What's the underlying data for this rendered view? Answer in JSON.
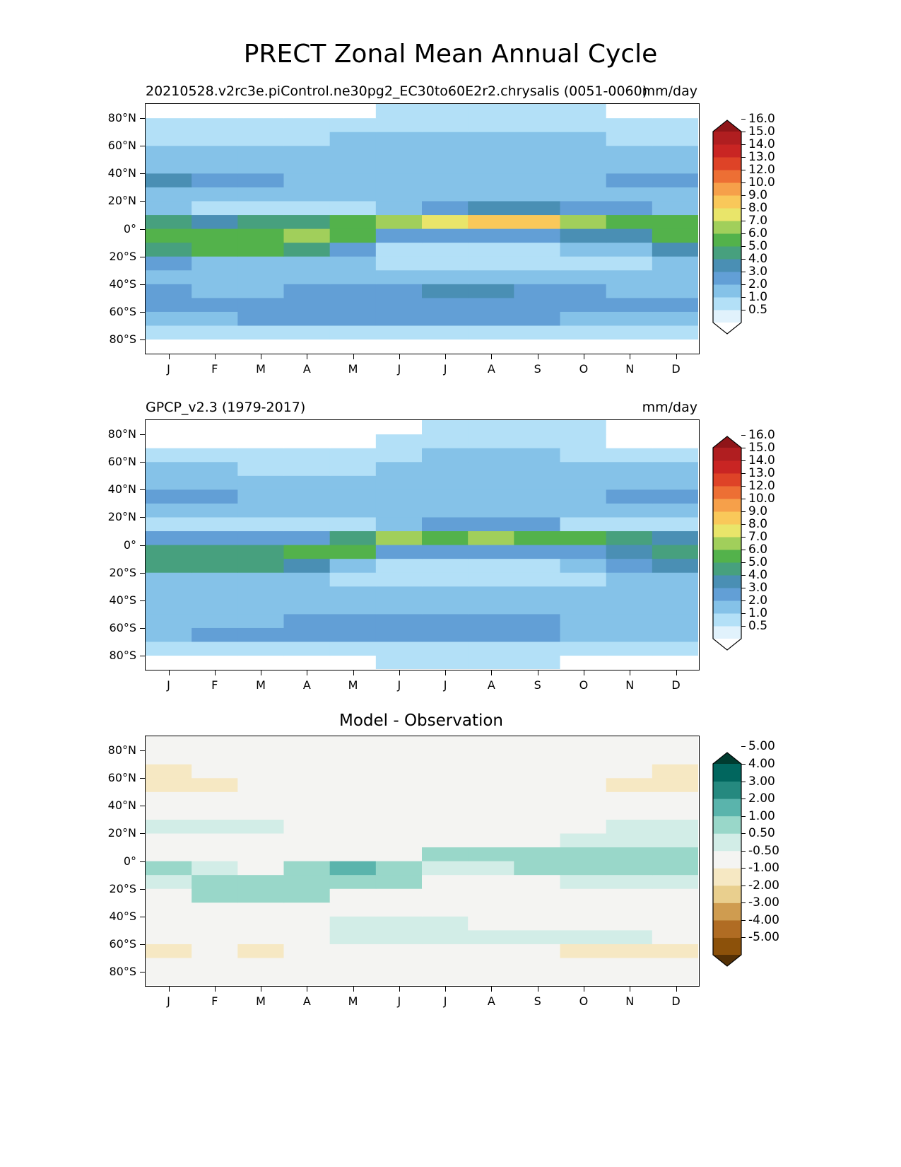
{
  "title": "PRECT Zonal Mean Annual Cycle",
  "chart_data": [
    {
      "type": "heatmap",
      "subtitle_left": "20210528.v2rc3e.piControl.ne30pg2_EC30to60E2r2.chrysalis (0051-0060)",
      "subtitle_right": "mm/day",
      "x_tick_labels": [
        "J",
        "F",
        "M",
        "A",
        "M",
        "J",
        "J",
        "A",
        "S",
        "O",
        "N",
        "D"
      ],
      "y_tick_labels": [
        "80°N",
        "60°N",
        "40°N",
        "20°N",
        "0°",
        "20°S",
        "40°S",
        "60°S",
        "80°S"
      ],
      "y_tick_values": [
        80,
        60,
        40,
        20,
        0,
        -20,
        -40,
        -60,
        -80
      ],
      "ylim": [
        -90,
        90
      ],
      "colorbar": {
        "extend": "both",
        "levels": [
          0.5,
          1.0,
          2.0,
          3.0,
          4.0,
          5.0,
          6.0,
          7.0,
          8.0,
          9.0,
          10.0,
          12.0,
          13.0,
          14.0,
          15.0,
          16.0
        ],
        "labels": [
          "0.5",
          "1.0",
          "2.0",
          "3.0",
          "4.0",
          "5.0",
          "6.0",
          "7.0",
          "8.0",
          "9.0",
          "10.0",
          "12.0",
          "13.0",
          "14.0",
          "15.0",
          "16.0"
        ],
        "colors": [
          "#ffffff",
          "#e1f2fc",
          "#b3e0f7",
          "#85c2e8",
          "#629fd6",
          "#4a8fb4",
          "#47a07e",
          "#53b24b",
          "#a1cf5b",
          "#e9e56a",
          "#f9c85a",
          "#f6a04a",
          "#ed6f34",
          "#de4327",
          "#c92523",
          "#b01e20",
          "#8f1518"
        ]
      },
      "lat_bins": [
        -90,
        -80,
        -70,
        -60,
        -50,
        -40,
        -30,
        -20,
        -10,
        0,
        10,
        20,
        30,
        40,
        50,
        60,
        70,
        80,
        90
      ],
      "values": [
        [
          0.3,
          0.3,
          0.3,
          0.3,
          0.3,
          0.3,
          0.3,
          0.3,
          0.3,
          0.3,
          0.3,
          0.3
        ],
        [
          1.5,
          1.5,
          1.5,
          1.5,
          1.5,
          1.5,
          1.5,
          1.5,
          1.5,
          1.5,
          1.5,
          1.5
        ],
        [
          2.5,
          2.5,
          3.5,
          3.5,
          3.5,
          3.5,
          3.5,
          3.5,
          3.5,
          2.5,
          2.5,
          2.5
        ],
        [
          3.5,
          3.5,
          3.5,
          3.5,
          3.5,
          3.5,
          3.5,
          3.5,
          3.5,
          3.5,
          3.5,
          3.5
        ],
        [
          3.5,
          2.5,
          2.5,
          3.5,
          3.5,
          3.5,
          4.5,
          4.5,
          3.5,
          3.5,
          2.5,
          2.5
        ],
        [
          2.5,
          2.5,
          2.5,
          2.5,
          2.5,
          2.5,
          2.5,
          2.5,
          2.5,
          2.5,
          2.5,
          2.5
        ],
        [
          3.5,
          2.5,
          2.5,
          2.5,
          2.5,
          1.5,
          1.5,
          1.5,
          1.5,
          1.5,
          1.5,
          2.5
        ],
        [
          5.5,
          6.5,
          6.5,
          5.5,
          3.5,
          1.5,
          1.5,
          1.0,
          1.5,
          2.5,
          2.5,
          4.5
        ],
        [
          6.5,
          6.5,
          6.5,
          7.5,
          6.5,
          3.5,
          3.5,
          3.5,
          3.5,
          4.5,
          4.5,
          6.5
        ],
        [
          5.5,
          4.5,
          5.5,
          5.5,
          6.5,
          7.5,
          8.5,
          9.5,
          9.5,
          7.5,
          6.5,
          6.5
        ],
        [
          2.5,
          1.5,
          1.5,
          1.0,
          1.5,
          2.5,
          3.5,
          4.5,
          4.5,
          3.5,
          3.5,
          2.5
        ],
        [
          2.5,
          2.5,
          2.5,
          2.5,
          2.5,
          2.5,
          2.5,
          2.5,
          2.5,
          2.5,
          2.5,
          2.5
        ],
        [
          4.5,
          3.5,
          3.5,
          2.5,
          2.5,
          2.5,
          2.5,
          2.5,
          2.5,
          2.5,
          3.5,
          3.5
        ],
        [
          2.5,
          2.5,
          2.5,
          2.5,
          2.5,
          2.5,
          2.5,
          2.5,
          2.5,
          2.5,
          2.5,
          2.5
        ],
        [
          2.5,
          2.5,
          2.5,
          2.5,
          2.5,
          2.5,
          2.5,
          2.5,
          2.5,
          2.5,
          2.5,
          2.5
        ],
        [
          1.5,
          1.5,
          1.5,
          1.5,
          2.5,
          2.5,
          2.5,
          2.5,
          2.5,
          2.5,
          1.5,
          1.5
        ],
        [
          1.0,
          1.0,
          1.0,
          1.0,
          1.0,
          1.5,
          1.5,
          1.5,
          1.5,
          1.5,
          1.0,
          1.0
        ],
        [
          0.3,
          0.3,
          0.3,
          0.3,
          0.3,
          1.0,
          1.0,
          1.0,
          1.0,
          1.0,
          0.3,
          0.3
        ]
      ]
    },
    {
      "type": "heatmap",
      "subtitle_left": "GPCP_v2.3 (1979-2017)",
      "subtitle_right": "mm/day",
      "x_tick_labels": [
        "J",
        "F",
        "M",
        "A",
        "M",
        "J",
        "J",
        "A",
        "S",
        "O",
        "N",
        "D"
      ],
      "y_tick_labels": [
        "80°N",
        "60°N",
        "40°N",
        "20°N",
        "0°",
        "20°S",
        "40°S",
        "60°S",
        "80°S"
      ],
      "y_tick_values": [
        80,
        60,
        40,
        20,
        0,
        -20,
        -40,
        -60,
        -80
      ],
      "ylim": [
        -90,
        90
      ],
      "colorbar": {
        "extend": "both",
        "levels": [
          0.5,
          1.0,
          2.0,
          3.0,
          4.0,
          5.0,
          6.0,
          7.0,
          8.0,
          9.0,
          10.0,
          12.0,
          13.0,
          14.0,
          15.0,
          16.0
        ],
        "labels": [
          "0.5",
          "1.0",
          "2.0",
          "3.0",
          "4.0",
          "5.0",
          "6.0",
          "7.0",
          "8.0",
          "9.0",
          "10.0",
          "12.0",
          "13.0",
          "14.0",
          "15.0",
          "16.0"
        ],
        "colors": [
          "#ffffff",
          "#e1f2fc",
          "#b3e0f7",
          "#85c2e8",
          "#629fd6",
          "#4a8fb4",
          "#47a07e",
          "#53b24b",
          "#a1cf5b",
          "#e9e56a",
          "#f9c85a",
          "#f6a04a",
          "#ed6f34",
          "#de4327",
          "#c92523",
          "#b01e20",
          "#8f1518"
        ]
      },
      "lat_bins": [
        -90,
        -80,
        -70,
        -60,
        -50,
        -40,
        -30,
        -20,
        -10,
        0,
        10,
        20,
        30,
        40,
        50,
        60,
        70,
        80,
        90
      ],
      "values": [
        [
          0.3,
          0.3,
          0.3,
          0.3,
          0.3,
          1.0,
          1.0,
          1.0,
          1.0,
          0.3,
          0.3,
          0.3
        ],
        [
          1.5,
          1.5,
          1.5,
          1.5,
          1.5,
          1.5,
          1.5,
          1.5,
          1.5,
          1.5,
          1.5,
          1.5
        ],
        [
          2.5,
          3.5,
          3.5,
          3.5,
          3.5,
          3.5,
          3.5,
          3.5,
          3.5,
          2.5,
          2.5,
          2.5
        ],
        [
          2.5,
          2.5,
          2.5,
          3.5,
          3.5,
          3.5,
          3.5,
          3.5,
          3.5,
          2.5,
          2.5,
          2.5
        ],
        [
          2.5,
          2.5,
          2.5,
          2.5,
          2.5,
          2.5,
          2.5,
          2.5,
          2.5,
          2.5,
          2.5,
          2.5
        ],
        [
          2.5,
          2.5,
          2.5,
          2.5,
          2.5,
          2.5,
          2.5,
          2.5,
          2.5,
          2.5,
          2.5,
          2.5
        ],
        [
          2.5,
          2.5,
          2.5,
          2.5,
          1.5,
          1.5,
          1.5,
          1.0,
          1.0,
          1.5,
          2.5,
          2.5
        ],
        [
          5.5,
          5.5,
          5.5,
          4.5,
          2.5,
          1.5,
          1.5,
          1.5,
          1.5,
          2.5,
          3.5,
          4.5
        ],
        [
          5.5,
          5.5,
          5.5,
          6.5,
          6.5,
          3.5,
          3.5,
          3.5,
          3.5,
          3.5,
          4.5,
          5.5
        ],
        [
          3.5,
          3.5,
          3.5,
          3.5,
          5.5,
          7.5,
          6.5,
          7.5,
          6.5,
          6.5,
          5.5,
          4.5
        ],
        [
          1.0,
          1.0,
          1.0,
          1.0,
          1.5,
          2.5,
          3.5,
          3.5,
          3.5,
          1.5,
          1.5,
          1.5
        ],
        [
          2.5,
          2.5,
          2.5,
          2.5,
          2.5,
          2.5,
          2.5,
          2.5,
          2.5,
          2.5,
          2.5,
          2.5
        ],
        [
          3.5,
          3.5,
          2.5,
          2.5,
          2.5,
          2.5,
          2.5,
          2.5,
          2.5,
          2.5,
          3.5,
          3.5
        ],
        [
          2.5,
          2.5,
          2.5,
          2.5,
          2.5,
          2.5,
          2.5,
          2.5,
          2.5,
          2.5,
          2.5,
          2.5
        ],
        [
          2.5,
          2.5,
          1.5,
          1.5,
          1.5,
          2.5,
          2.5,
          2.5,
          2.5,
          2.5,
          2.5,
          2.5
        ],
        [
          1.5,
          1.5,
          1.5,
          1.5,
          1.5,
          1.5,
          2.5,
          2.5,
          2.5,
          1.5,
          1.5,
          1.5
        ],
        [
          0.3,
          0.3,
          0.3,
          0.3,
          0.3,
          1.0,
          1.0,
          1.0,
          1.0,
          1.0,
          0.3,
          0.3
        ],
        [
          0.3,
          0.3,
          0.3,
          0.3,
          0.3,
          0.3,
          1.0,
          1.0,
          1.0,
          1.0,
          0.3,
          0.3
        ]
      ]
    },
    {
      "type": "heatmap",
      "subtitle_center": "Model - Observation",
      "x_tick_labels": [
        "J",
        "F",
        "M",
        "A",
        "M",
        "J",
        "J",
        "A",
        "S",
        "O",
        "N",
        "D"
      ],
      "y_tick_labels": [
        "80°N",
        "60°N",
        "40°N",
        "20°N",
        "0°",
        "20°S",
        "40°S",
        "60°S",
        "80°S"
      ],
      "y_tick_values": [
        80,
        60,
        40,
        20,
        0,
        -20,
        -40,
        -60,
        -80
      ],
      "ylim": [
        -90,
        90
      ],
      "colorbar": {
        "extend": "both",
        "levels": [
          -5.0,
          -4.0,
          -3.0,
          -2.0,
          -1.0,
          -0.5,
          0.5,
          1.0,
          2.0,
          3.0,
          4.0,
          5.0
        ],
        "labels": [
          "-5.00",
          "-4.00",
          "-3.00",
          "-2.00",
          "-1.00",
          "-0.50",
          "0.50",
          "1.00",
          "2.00",
          "3.00",
          "4.00",
          "5.00"
        ],
        "colors": [
          "#543005",
          "#8c510a",
          "#b06c23",
          "#cf9c50",
          "#e9cf8e",
          "#f6e8c3",
          "#f4f4f2",
          "#d2ede7",
          "#99d7c9",
          "#5ab4ac",
          "#25897f",
          "#01665e",
          "#003c30"
        ]
      },
      "lat_bins": [
        -90,
        -80,
        -70,
        -60,
        -50,
        -40,
        -30,
        -20,
        -10,
        0,
        10,
        20,
        30,
        40,
        50,
        60,
        70,
        80,
        90
      ],
      "values": [
        [
          0,
          0,
          0,
          0,
          0,
          0,
          0,
          0,
          0,
          0,
          0,
          0
        ],
        [
          0,
          0,
          0,
          0,
          0,
          0,
          0,
          0,
          0,
          0,
          0,
          0
        ],
        [
          -0.7,
          0,
          -0.7,
          0,
          0,
          0,
          0,
          0,
          0,
          -0.7,
          -0.7,
          -0.7
        ],
        [
          0,
          0,
          0,
          0,
          0.7,
          0.7,
          0.7,
          0.7,
          0.7,
          0.7,
          0.7,
          0
        ],
        [
          0,
          0,
          0,
          0,
          0.7,
          0.7,
          0.7,
          0,
          0,
          0,
          0,
          0
        ],
        [
          0,
          0,
          0,
          0,
          0,
          0,
          0,
          0,
          0,
          0,
          0,
          0
        ],
        [
          0,
          1.5,
          1.5,
          1.5,
          0,
          0,
          0,
          0,
          0,
          0,
          0,
          0
        ],
        [
          0.7,
          1.5,
          1.5,
          1.5,
          1.5,
          1.5,
          0,
          0,
          0,
          0.7,
          0.7,
          0.7
        ],
        [
          1.5,
          0.7,
          0,
          1.5,
          2.5,
          1.5,
          0.7,
          0.7,
          1.5,
          1.5,
          1.5,
          1.5
        ],
        [
          0,
          0,
          0,
          0,
          0,
          0,
          1.5,
          1.5,
          1.5,
          1.5,
          1.5,
          1.5
        ],
        [
          0,
          0,
          0,
          0,
          0,
          0,
          0,
          0,
          0,
          0.7,
          0.7,
          0.7
        ],
        [
          0.7,
          0.7,
          0.7,
          0,
          0,
          0,
          0,
          0,
          0,
          0,
          0.7,
          0.7
        ],
        [
          0,
          0,
          0,
          0,
          0,
          0,
          0,
          0,
          0,
          0,
          0,
          0
        ],
        [
          0,
          0,
          0,
          0,
          0,
          0,
          0,
          0,
          0,
          0,
          0,
          0
        ],
        [
          -0.7,
          -0.7,
          0,
          0,
          0,
          0,
          0,
          0,
          0,
          0,
          -0.7,
          -0.7
        ],
        [
          -0.7,
          0,
          0,
          0,
          0,
          0,
          0,
          0,
          0,
          0,
          0,
          -0.7
        ],
        [
          0,
          0,
          0,
          0,
          0,
          0,
          0,
          0,
          0,
          0,
          0,
          0
        ],
        [
          0,
          0,
          0,
          0,
          0,
          0,
          0,
          0,
          0,
          0,
          0,
          0
        ]
      ]
    }
  ]
}
